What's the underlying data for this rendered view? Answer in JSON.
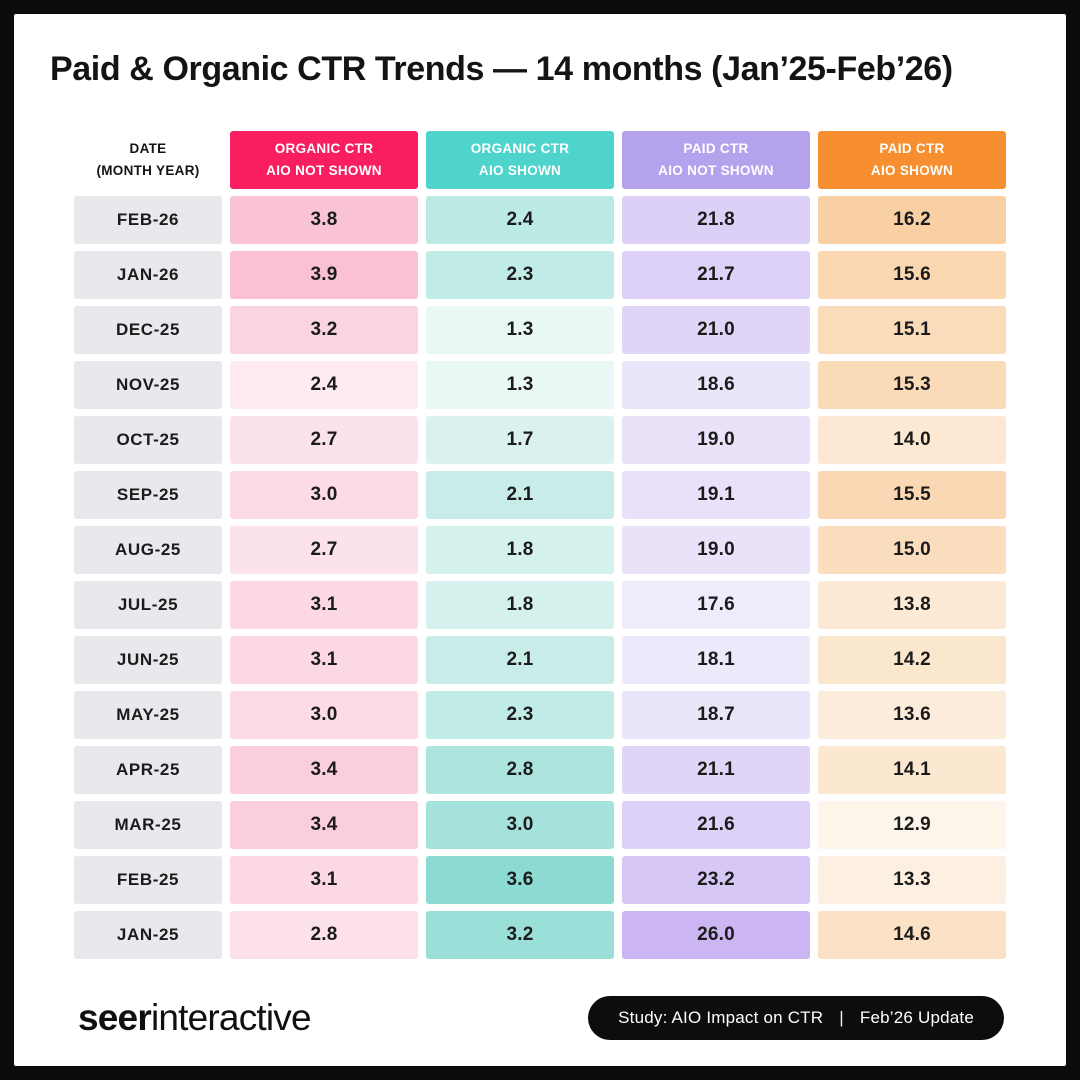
{
  "title": "Paid & Organic CTR Trends — 14 months (Jan’25-Feb’26)",
  "table": {
    "date_header_line1": "DATE",
    "date_header_line2": "(MONTH YEAR)",
    "date_cell_bg": "#E9E8EC",
    "columns": [
      {
        "line1": "ORGANIC CTR",
        "line2": "AIO NOT SHOWN",
        "header_bg": "#F91E5F",
        "cell_light": "#FDEBF1",
        "cell_strong": "#FAC0D6"
      },
      {
        "line1": "ORGANIC CTR",
        "line2": "AIO SHOWN",
        "header_bg": "#4ED4CC",
        "cell_light": "#E9F7F5",
        "cell_strong": "#8BDBD2"
      },
      {
        "line1": "PAID CTR",
        "line2": "AIO NOT SHOWN",
        "header_bg": "#B5A2ED",
        "cell_light": "#EFEBFA",
        "cell_strong": "#CBB5F3"
      },
      {
        "line1": "PAID CTR",
        "line2": "AIO SHOWN",
        "header_bg": "#F78E2F",
        "cell_light": "#FDF4EA",
        "cell_strong": "#F9D0A4"
      }
    ]
  },
  "chart_data": {
    "type": "table",
    "title": "Paid & Organic CTR Trends — 14 months (Jan’25-Feb’26)",
    "categories": [
      "FEB-26",
      "JAN-26",
      "DEC-25",
      "NOV-25",
      "OCT-25",
      "SEP-25",
      "AUG-25",
      "JUL-25",
      "JUN-25",
      "MAY-25",
      "APR-25",
      "MAR-25",
      "FEB-25",
      "JAN-25"
    ],
    "series": [
      {
        "name": "Organic CTR AIO Not Shown",
        "values": [
          3.8,
          3.9,
          3.2,
          2.4,
          2.7,
          3.0,
          2.7,
          3.1,
          3.1,
          3.0,
          3.4,
          3.4,
          3.1,
          2.8
        ]
      },
      {
        "name": "Organic CTR AIO Shown",
        "values": [
          2.4,
          2.3,
          1.3,
          1.3,
          1.7,
          2.1,
          1.8,
          1.8,
          2.1,
          2.3,
          2.8,
          3.0,
          3.6,
          3.2
        ]
      },
      {
        "name": "Paid CTR AIO Not Shown",
        "values": [
          21.8,
          21.7,
          21.0,
          18.6,
          19.0,
          19.1,
          19.0,
          17.6,
          18.1,
          18.7,
          21.1,
          21.6,
          23.2,
          26.0
        ]
      },
      {
        "name": "Paid CTR AIO Shown",
        "values": [
          16.2,
          15.6,
          15.1,
          15.3,
          14.0,
          15.5,
          15.0,
          13.8,
          14.2,
          13.6,
          14.1,
          12.9,
          13.3,
          14.6
        ]
      }
    ],
    "value_format": "one_decimal",
    "heatmap": "per-column, light-to-strong by value"
  },
  "footer": {
    "logo_bold": "seer",
    "logo_light": "interactive",
    "badge_study": "Study: AIO Impact on CTR",
    "badge_separator": "|",
    "badge_update": "Feb’26 Update"
  }
}
